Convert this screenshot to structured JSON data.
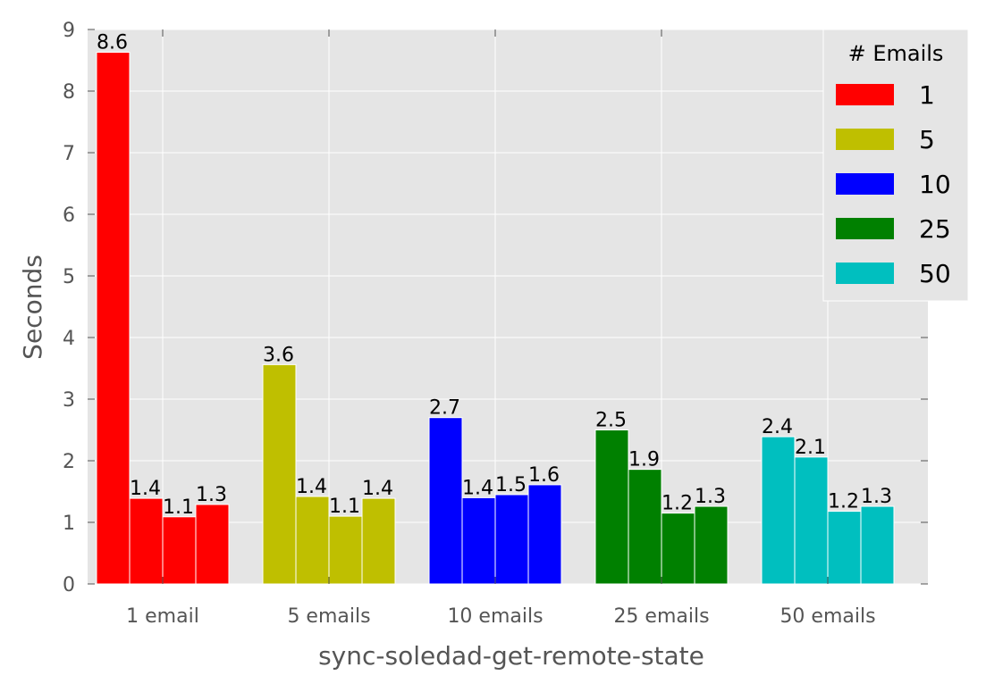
{
  "chart_data": {
    "type": "bar",
    "title": "",
    "xlabel": "sync-soledad-get-remote-state",
    "ylabel": "Seconds",
    "ylim": [
      0,
      9
    ],
    "yticks": [
      "0",
      "1",
      "2",
      "3",
      "4",
      "5",
      "6",
      "7",
      "8",
      "9"
    ],
    "grid": true,
    "categories": [
      "1 email",
      "5 emails",
      "10 emails",
      "25 emails",
      "50 emails"
    ],
    "bars_per_group": 4,
    "groups": [
      {
        "category": "1 email",
        "color": "#ff0000",
        "values": [
          8.63,
          1.39,
          1.09,
          1.29
        ],
        "labels": [
          "8.6",
          "1.4",
          "1.1",
          "1.3"
        ]
      },
      {
        "category": "5 emails",
        "color": "#bfbf00",
        "values": [
          3.56,
          1.42,
          1.1,
          1.39
        ],
        "labels": [
          "3.6",
          "1.4",
          "1.1",
          "1.4"
        ]
      },
      {
        "category": "10 emails",
        "color": "#0000ff",
        "values": [
          2.7,
          1.4,
          1.45,
          1.61
        ],
        "labels": [
          "2.7",
          "1.4",
          "1.5",
          "1.6"
        ]
      },
      {
        "category": "25 emails",
        "color": "#008000",
        "values": [
          2.5,
          1.86,
          1.15,
          1.26
        ],
        "labels": [
          "2.5",
          "1.9",
          "1.2",
          "1.3"
        ]
      },
      {
        "category": "50 emails",
        "color": "#00bfbf",
        "values": [
          2.39,
          2.06,
          1.18,
          1.26
        ],
        "labels": [
          "2.4",
          "2.1",
          "1.2",
          "1.3"
        ]
      }
    ],
    "legend": {
      "title": "# Emails",
      "placement": "top-right",
      "entries": [
        {
          "label": "1",
          "color": "#ff0000"
        },
        {
          "label": "5",
          "color": "#bfbf00"
        },
        {
          "label": "10",
          "color": "#0000ff"
        },
        {
          "label": "25",
          "color": "#008000"
        },
        {
          "label": "50",
          "color": "#00bfbf"
        }
      ]
    },
    "colors": {
      "plot_background": "#e5e5e5",
      "grid": "#ffffff",
      "tick_label": "#555555",
      "axis_label": "#555555",
      "annotation": "#000000"
    }
  }
}
